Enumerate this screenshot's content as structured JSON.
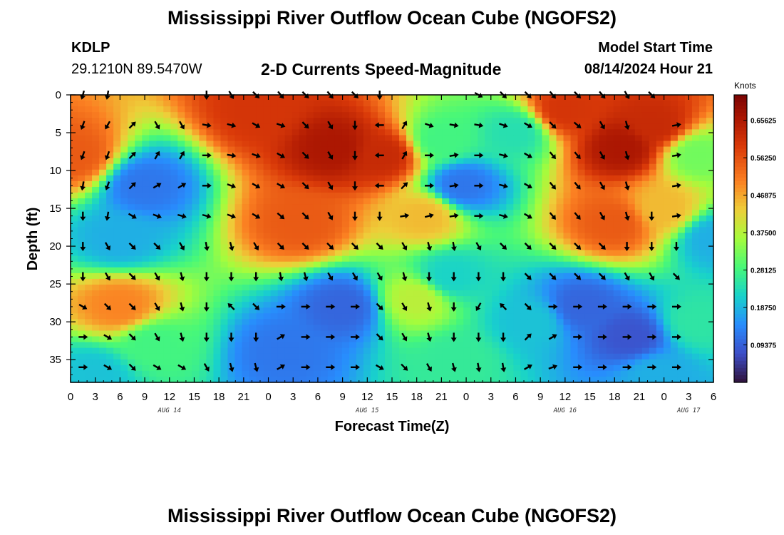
{
  "page": {
    "title": "Mississippi River Outflow Ocean Cube (NGOFS2)",
    "bottom_title": "Mississippi River Outflow Ocean Cube (NGOFS2)",
    "station_id": "KDLP",
    "station_coords": "29.1210N  89.5470W",
    "subtitle": "2-D Currents Speed-Magnitude",
    "model_start_label": "Model Start Time",
    "model_start_value": "08/14/2024 Hour 21"
  },
  "chart_data": {
    "type": "heatmap",
    "title": "2-D Currents Speed-Magnitude",
    "xlabel": "Forecast Time(Z)",
    "ylabel": "Depth (ft)",
    "xlim": [
      0,
      78
    ],
    "ylim": [
      38,
      0
    ],
    "x_tick_labels": [
      "0",
      "3",
      "6",
      "9",
      "12",
      "15",
      "18",
      "21",
      "0",
      "3",
      "6",
      "9",
      "12",
      "15",
      "18",
      "21",
      "0",
      "3",
      "6",
      "9",
      "12",
      "15",
      "18",
      "21",
      "0",
      "3",
      "6"
    ],
    "y_ticks": [
      0,
      5,
      10,
      15,
      20,
      25,
      30,
      35
    ],
    "date_labels": [
      {
        "label": "AUG 14",
        "hour": 12
      },
      {
        "label": "AUG 15",
        "hour": 36
      },
      {
        "label": "AUG 16",
        "hour": 60
      },
      {
        "label": "AUG 17",
        "hour": 75
      }
    ],
    "colorbar": {
      "units": "Knots",
      "ticks": [
        "0.09375",
        "0.18750",
        "0.28125",
        "0.37500",
        "0.46875",
        "0.56250",
        "0.65625"
      ],
      "range": [
        0.0,
        0.72
      ]
    },
    "speed_features": [
      {
        "hour": 0.5,
        "depth": 8,
        "speed": 0.55
      },
      {
        "hour": 9,
        "depth": 12,
        "speed": 0.12
      },
      {
        "hour": 6,
        "depth": 28,
        "speed": 0.5
      },
      {
        "hour": 6,
        "depth": 19,
        "speed": 0.18
      },
      {
        "hour": 3,
        "depth": 37,
        "speed": 0.2
      },
      {
        "hour": 32,
        "depth": 7,
        "speed": 0.66
      },
      {
        "hour": 23,
        "depth": 2,
        "speed": 0.6
      },
      {
        "hour": 38,
        "depth": 8,
        "speed": 0.62
      },
      {
        "hour": 28,
        "depth": 17,
        "speed": 0.55
      },
      {
        "hour": 43,
        "depth": 16,
        "speed": 0.45
      },
      {
        "hour": 45,
        "depth": 6,
        "speed": 0.28
      },
      {
        "hour": 33,
        "depth": 28,
        "speed": 0.1
      },
      {
        "hour": 26,
        "depth": 34,
        "speed": 0.12
      },
      {
        "hour": 42,
        "depth": 27,
        "speed": 0.38
      },
      {
        "hour": 47,
        "depth": 35,
        "speed": 0.26
      },
      {
        "hour": 47.5,
        "depth": 12,
        "speed": 0.12
      },
      {
        "hour": 46,
        "depth": 24,
        "speed": 0.22
      },
      {
        "hour": 54,
        "depth": 5,
        "speed": 0.24
      },
      {
        "hour": 56,
        "depth": 30,
        "speed": 0.2
      },
      {
        "hour": 67,
        "depth": 7,
        "speed": 0.66
      },
      {
        "hour": 60,
        "depth": 2,
        "speed": 0.6
      },
      {
        "hour": 71,
        "depth": 4,
        "speed": 0.62
      },
      {
        "hour": 66,
        "depth": 17,
        "speed": 0.55
      },
      {
        "hour": 72,
        "depth": 15,
        "speed": 0.45
      },
      {
        "hour": 62,
        "depth": 28,
        "speed": 0.1
      },
      {
        "hour": 68,
        "depth": 32,
        "speed": 0.08
      },
      {
        "hour": 71,
        "depth": 37,
        "speed": 0.18
      },
      {
        "hour": 76,
        "depth": 8,
        "speed": 0.32
      },
      {
        "hour": 78,
        "depth": 19,
        "speed": 0.18
      },
      {
        "hour": 76,
        "depth": 30,
        "speed": 0.25
      },
      {
        "hour": 10,
        "depth": 33,
        "speed": 0.28
      }
    ],
    "arrow_rows": [
      {
        "depth": 0,
        "angles": [
          105,
          100,
          null,
          null,
          null,
          90,
          60,
          45,
          50,
          45,
          50,
          45,
          90,
          null,
          null,
          null,
          30,
          45,
          45,
          50,
          45,
          50,
          60,
          45,
          null
        ]
      },
      {
        "depth": 4,
        "angles": [
          110,
          120,
          -45,
          60,
          60,
          10,
          15,
          30,
          20,
          45,
          60,
          90,
          180,
          -60,
          20,
          10,
          10,
          20,
          30,
          45,
          40,
          60,
          75,
          null,
          -10
        ]
      },
      {
        "depth": 8,
        "angles": [
          110,
          110,
          -45,
          -60,
          -60,
          0,
          10,
          20,
          30,
          45,
          60,
          90,
          180,
          -60,
          0,
          -10,
          0,
          15,
          30,
          50,
          50,
          60,
          75,
          null,
          -10
        ]
      },
      {
        "depth": 12,
        "angles": [
          100,
          110,
          -45,
          -30,
          -30,
          0,
          20,
          30,
          30,
          45,
          60,
          90,
          180,
          -45,
          0,
          -10,
          0,
          15,
          30,
          50,
          50,
          60,
          75,
          null,
          -10
        ]
      },
      {
        "depth": 16,
        "angles": [
          90,
          100,
          30,
          20,
          15,
          15,
          20,
          30,
          40,
          45,
          60,
          90,
          90,
          -10,
          -15,
          -10,
          0,
          15,
          30,
          50,
          50,
          60,
          75,
          90,
          -10
        ]
      },
      {
        "depth": 20,
        "angles": [
          90,
          60,
          45,
          45,
          60,
          80,
          75,
          60,
          45,
          45,
          45,
          45,
          45,
          60,
          75,
          80,
          60,
          45,
          45,
          45,
          45,
          45,
          90,
          90,
          90
        ]
      },
      {
        "depth": 24,
        "angles": [
          90,
          60,
          45,
          60,
          75,
          90,
          90,
          90,
          80,
          75,
          60,
          60,
          60,
          75,
          90,
          90,
          90,
          90,
          45,
          45,
          45,
          45,
          60,
          60,
          45
        ]
      },
      {
        "depth": 28,
        "angles": [
          30,
          45,
          45,
          60,
          75,
          90,
          -135,
          45,
          0,
          0,
          0,
          0,
          45,
          60,
          75,
          90,
          120,
          -135,
          45,
          0,
          0,
          0,
          0,
          0,
          0
        ]
      },
      {
        "depth": 32,
        "angles": [
          0,
          30,
          45,
          60,
          75,
          90,
          90,
          90,
          -30,
          0,
          0,
          0,
          45,
          60,
          75,
          90,
          90,
          90,
          -45,
          -30,
          0,
          0,
          0,
          0,
          0
        ]
      },
      {
        "depth": 36,
        "angles": [
          0,
          30,
          45,
          30,
          30,
          60,
          75,
          75,
          -30,
          0,
          0,
          0,
          30,
          45,
          60,
          75,
          80,
          80,
          -30,
          -20,
          0,
          0,
          0,
          0,
          0
        ]
      }
    ]
  }
}
